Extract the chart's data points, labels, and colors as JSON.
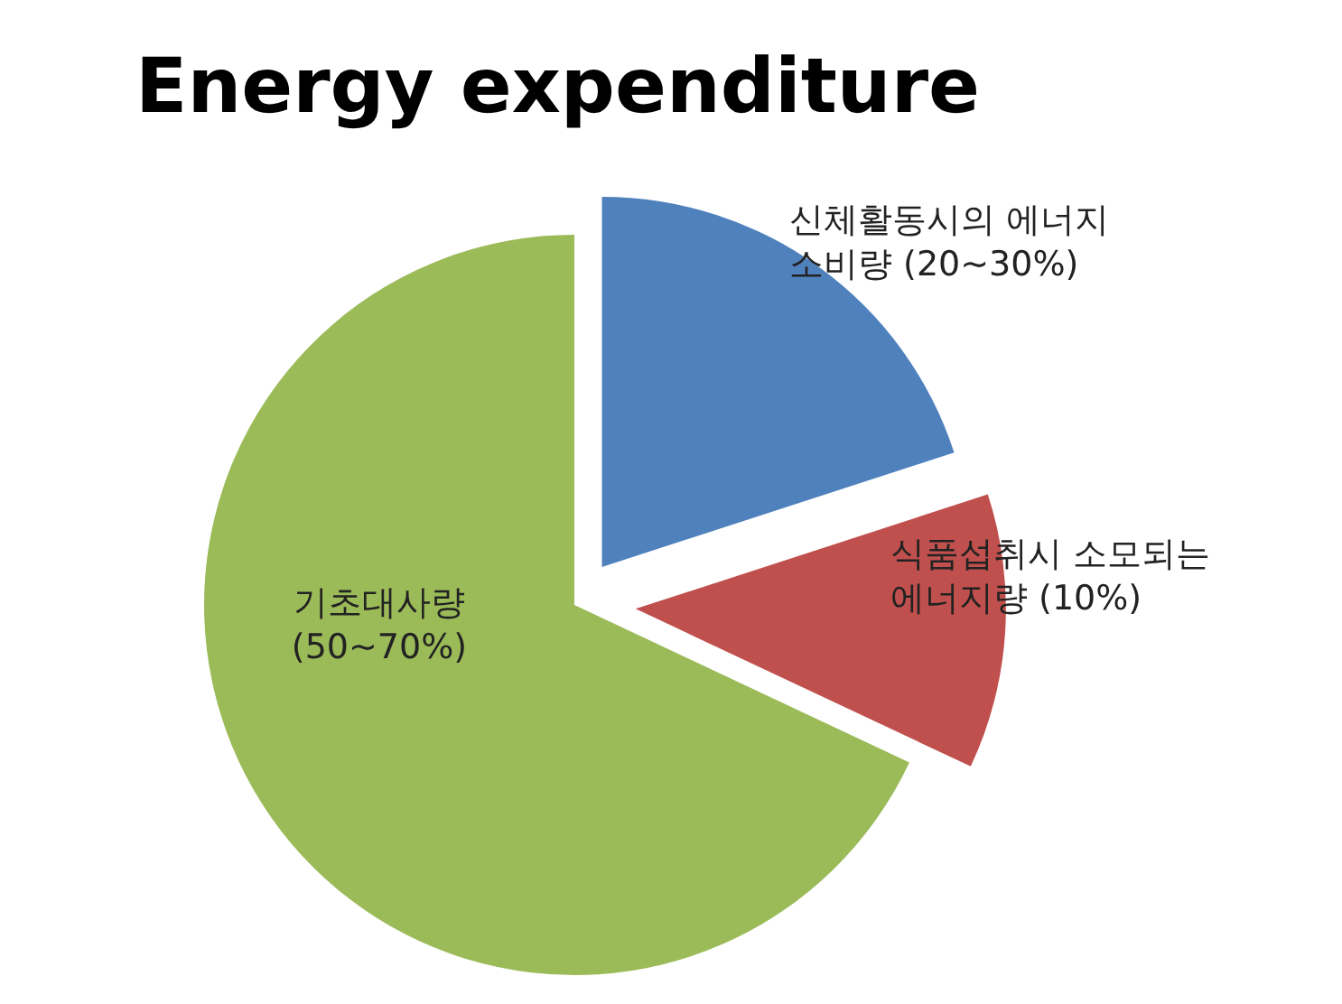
{
  "chart_data": {
    "type": "pie",
    "title": "Energy expenditure",
    "categories": [
      "신체활동시의 에너지\n소비량 (20~30%)",
      "식품섭취시 소모되는\n에너지량 (10%)",
      "기초대사량\n(50~70%)"
    ],
    "values": [
      20,
      12,
      68
    ],
    "colors": [
      "#4f81bd",
      "#c0504d",
      "#9bbb59"
    ]
  }
}
